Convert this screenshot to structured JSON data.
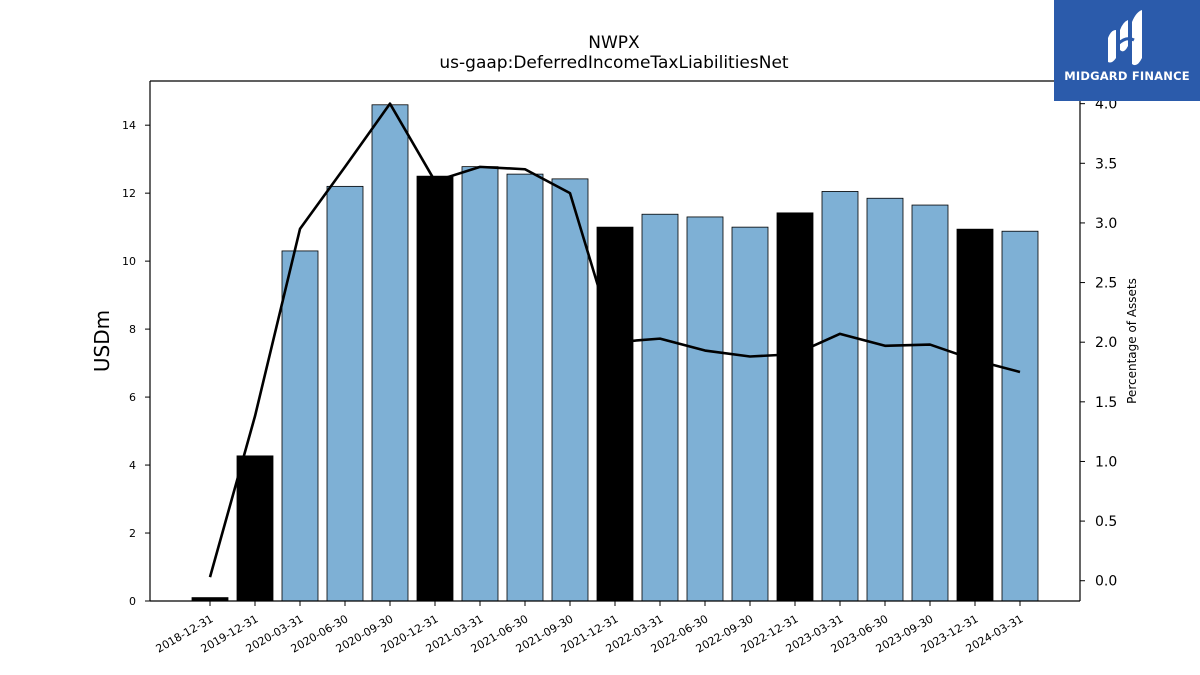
{
  "chart_data": {
    "type": "bar",
    "title": "NWPX",
    "subtitle": "us-gaap:DeferredIncomeTaxLiabilitiesNet",
    "ylabel": "USDm",
    "y2label": "Percentage of Assets",
    "ylim": [
      0,
      15.3
    ],
    "y2lim": [
      -0.17,
      4.19
    ],
    "yticks": [
      0,
      2,
      4,
      6,
      8,
      10,
      12,
      14
    ],
    "y2ticks": [
      0.0,
      0.5,
      1.0,
      1.5,
      2.0,
      2.5,
      3.0,
      3.5,
      4.0
    ],
    "categories": [
      "2018-12-31",
      "2019-12-31",
      "2020-03-31",
      "2020-06-30",
      "2020-09-30",
      "2020-12-31",
      "2021-03-31",
      "2021-06-30",
      "2021-09-30",
      "2021-12-31",
      "2022-03-31",
      "2022-06-30",
      "2022-09-30",
      "2022-12-31",
      "2023-03-31",
      "2023-06-30",
      "2023-09-30",
      "2023-12-31",
      "2024-03-31"
    ],
    "series": [
      {
        "axis": "left",
        "mark": "bar",
        "values": [
          0.1,
          4.27,
          10.3,
          12.2,
          14.6,
          12.5,
          12.78,
          12.56,
          12.42,
          11.0,
          11.38,
          11.3,
          11.0,
          11.42,
          12.05,
          11.85,
          11.65,
          10.94,
          10.88
        ]
      },
      {
        "axis": "right",
        "mark": "line",
        "values": [
          0.03,
          1.38,
          2.95,
          3.47,
          4.0,
          3.35,
          3.47,
          3.45,
          3.25,
          2.0,
          2.03,
          1.93,
          1.88,
          1.9,
          2.07,
          1.97,
          1.98,
          1.85,
          1.75
        ]
      }
    ],
    "highlight_categories": [
      "2018-12-31",
      "2019-12-31",
      "2020-12-31",
      "2021-12-31",
      "2022-12-31",
      "2023-12-31"
    ],
    "colors": {
      "bar": "#7eb0d5",
      "bar_highlight": "#000000",
      "line": "#000000",
      "axis": "#000000"
    }
  },
  "logo": {
    "text": "MIDGARD FINANCE",
    "background": "#2b5bab"
  }
}
